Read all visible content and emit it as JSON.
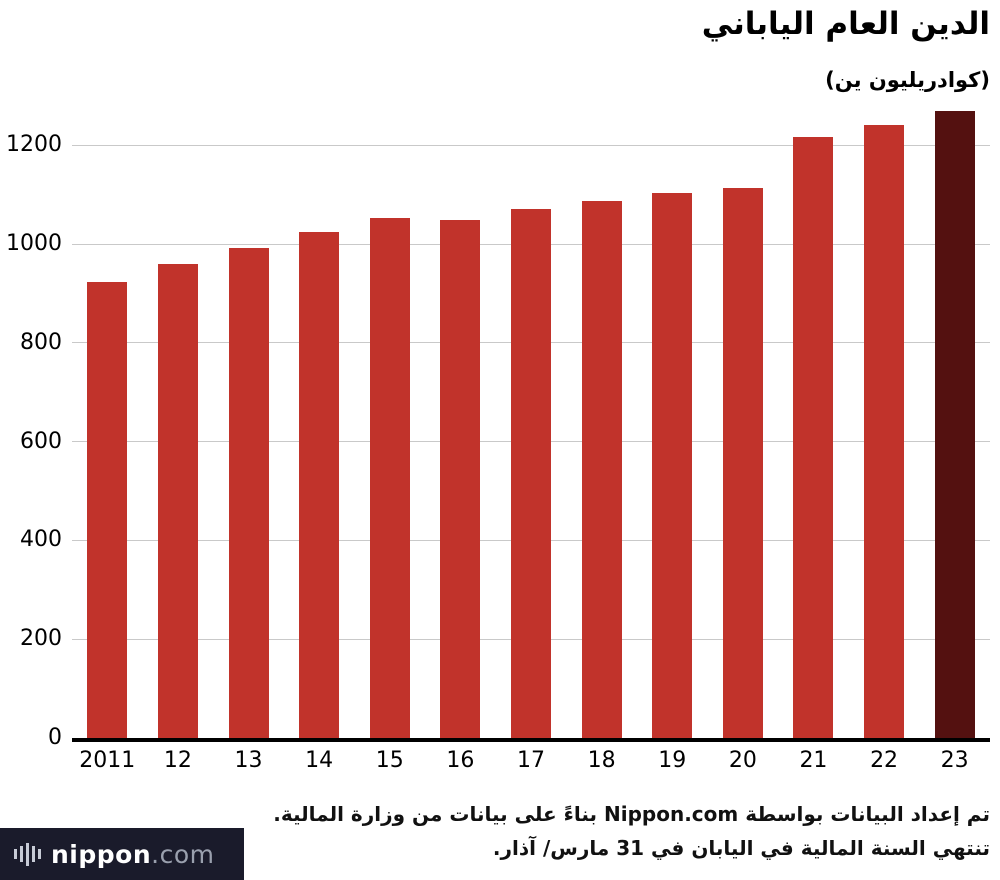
{
  "title": "الدين العام الياباني",
  "unit_label": "(كوادريليون ين)",
  "chart_data": {
    "type": "bar",
    "title": "الدين العام الياباني",
    "ylabel": "(كوادريليون ين)",
    "xlabel": "",
    "categories": [
      "2011",
      "12",
      "13",
      "14",
      "15",
      "16",
      "17",
      "18",
      "19",
      "20",
      "21",
      "22",
      "23"
    ],
    "values": [
      924,
      960,
      992,
      1025,
      1053,
      1049,
      1071,
      1088,
      1103,
      1114,
      1216,
      1241,
      1270
    ],
    "ylim": [
      0,
      1300
    ],
    "yticks": [
      0,
      200,
      400,
      600,
      800,
      1000,
      1200
    ],
    "grid": true,
    "legend": "none",
    "bar_color": "#c1332b",
    "highlight_color": "#541110",
    "highlight_index": 12
  },
  "footnotes": {
    "line1": "تم إعداد البيانات بواسطة Nippon.com بناءً على بيانات من وزارة المالية.",
    "line2": "تنتهي السنة المالية في اليابان في 31 مارس/ آذار."
  },
  "branding": {
    "logo_name": "nippon",
    "logo_suffix": ".com",
    "chip_color": "#1a1b2b"
  }
}
